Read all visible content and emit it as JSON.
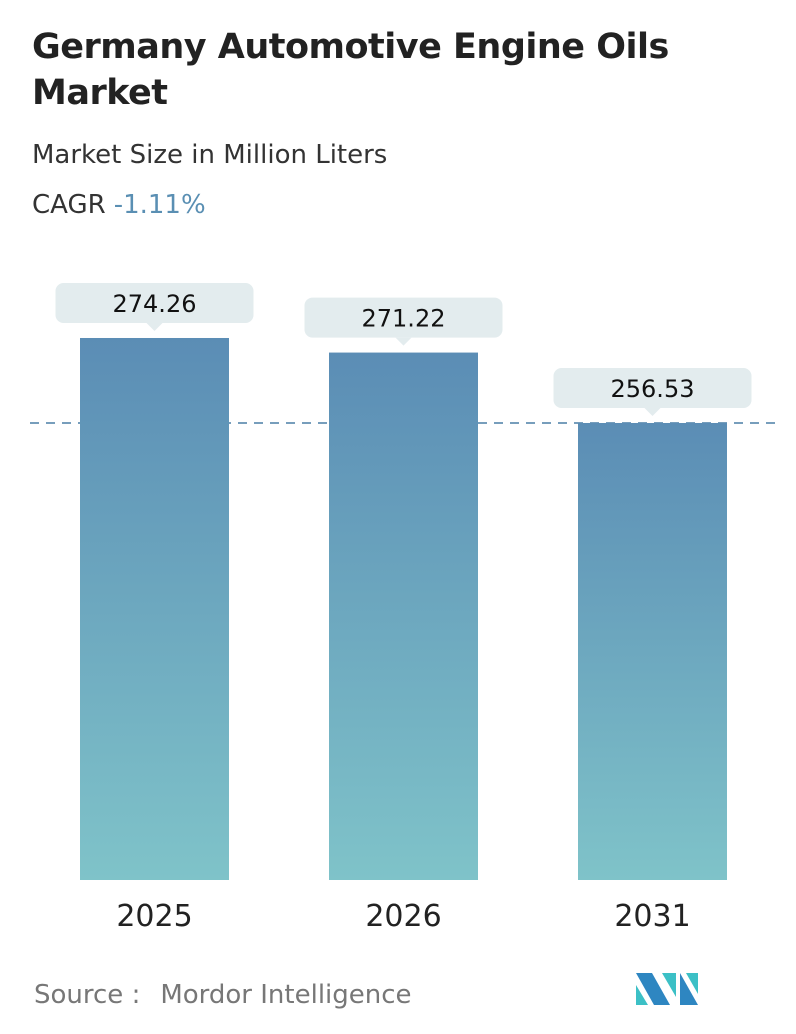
{
  "title": "Germany Automotive Engine Oils Market",
  "subtitle": "Market Size in Million Liters",
  "cagr": {
    "label": "CAGR",
    "value": "-1.11%"
  },
  "source": {
    "label": "Source :",
    "value": "Mordor Intelligence"
  },
  "colors": {
    "bar_top": "#5b8db5",
    "bar_bottom": "#7fc3c9",
    "label_bg": "#e3ecee",
    "dash": "#4a7ea6",
    "cagr": "#5a8fb3"
  },
  "chart_data": {
    "type": "bar",
    "title": "Germany Automotive Engine Oils Market",
    "subtitle": "Market Size in Million Liters",
    "categories": [
      "2025",
      "2026",
      "2031"
    ],
    "values": [
      274.26,
      271.22,
      256.53
    ],
    "data_labels": [
      "274.26",
      "271.22",
      "256.53"
    ],
    "grid": false,
    "reference_line": "dashed line at 2031 value",
    "legend": "none"
  }
}
